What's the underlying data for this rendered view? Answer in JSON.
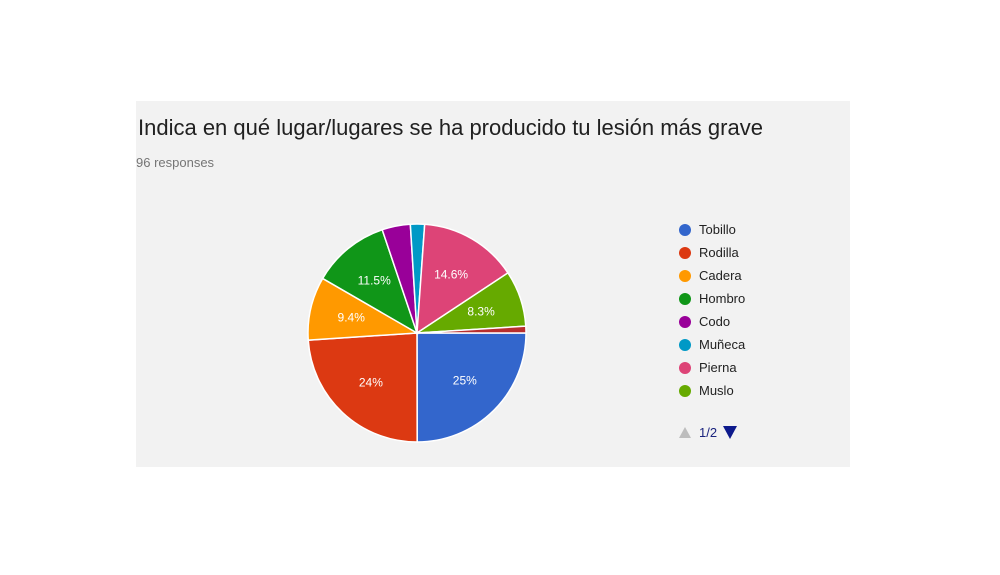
{
  "chart_data": {
    "type": "pie",
    "title": "Indica en qué lugar/lugares se ha producido tu lesión más grave",
    "subtitle": "96 responses",
    "slices": [
      {
        "label": "Tobillo",
        "value": 25,
        "display": "25%",
        "color": "#3366cc"
      },
      {
        "label": "Rodilla",
        "value": 24,
        "display": "24%",
        "color": "#dc3912"
      },
      {
        "label": "Cadera",
        "value": 9.4,
        "display": "9.4%",
        "color": "#ff9900"
      },
      {
        "label": "Hombro",
        "value": 11.5,
        "display": "11.5%",
        "color": "#109618"
      },
      {
        "label": "Codo",
        "value": 4.2,
        "display": "",
        "color": "#990099"
      },
      {
        "label": "Muñeca",
        "value": 2.1,
        "display": "",
        "color": "#0099c6"
      },
      {
        "label": "Pierna",
        "value": 14.6,
        "display": "14.6%",
        "color": "#dd4477"
      },
      {
        "label": "Muslo",
        "value": 8.3,
        "display": "8.3%",
        "color": "#66aa00"
      },
      {
        "label": "",
        "value": 1.0,
        "display": "",
        "color": "#b82e2e"
      }
    ],
    "legend_position": "right"
  },
  "legend": {
    "items": [
      {
        "label": "Tobillo",
        "color": "#3366cc"
      },
      {
        "label": "Rodilla",
        "color": "#dc3912"
      },
      {
        "label": "Cadera",
        "color": "#ff9900"
      },
      {
        "label": "Hombro",
        "color": "#109618"
      },
      {
        "label": "Codo",
        "color": "#990099"
      },
      {
        "label": "Muñeca",
        "color": "#0099c6"
      },
      {
        "label": "Pierna",
        "color": "#dd4477"
      },
      {
        "label": "Muslo",
        "color": "#66aa00"
      }
    ]
  },
  "pager": {
    "text": "1/2",
    "prev_icon": "triangle-up-icon",
    "next_icon": "triangle-down-icon"
  }
}
